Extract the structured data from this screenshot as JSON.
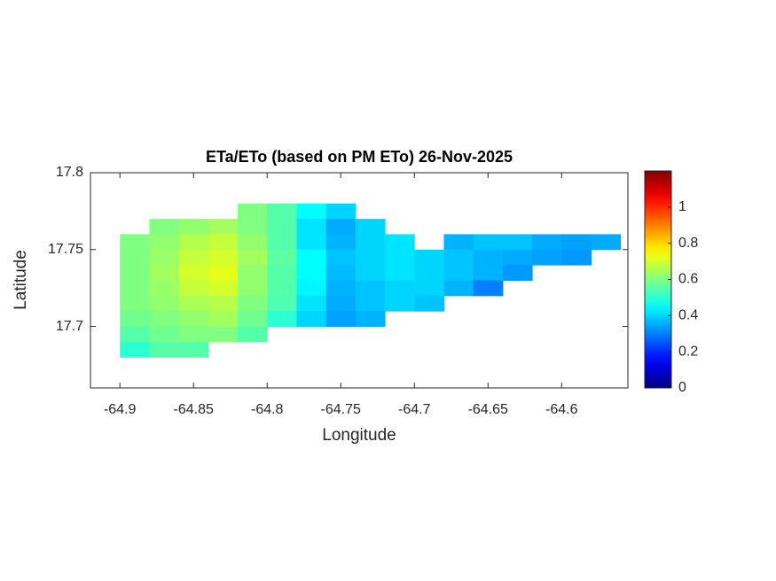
{
  "chart_data": {
    "type": "heatmap",
    "title": "ETa/ETo (based on PM ETo) 26-Nov-2025",
    "xlabel": "Longitude",
    "ylabel": "Latitude",
    "x": [
      -64.89,
      -64.87,
      -64.85,
      -64.83,
      -64.81,
      -64.79,
      -64.77,
      -64.75,
      -64.73,
      -64.71,
      -64.69,
      -64.67,
      -64.65,
      -64.63,
      -64.61,
      -64.59,
      -64.57
    ],
    "y": [
      17.775,
      17.765,
      17.755,
      17.745,
      17.735,
      17.725,
      17.715,
      17.705,
      17.695,
      17.685
    ],
    "values": [
      [
        null,
        null,
        null,
        null,
        0.6,
        0.55,
        0.45,
        0.4,
        null,
        null,
        null,
        null,
        null,
        null,
        null,
        null,
        null
      ],
      [
        null,
        0.6,
        0.62,
        0.64,
        0.6,
        0.55,
        0.42,
        0.35,
        0.4,
        null,
        null,
        null,
        null,
        null,
        null,
        null,
        null
      ],
      [
        0.6,
        0.62,
        0.66,
        0.68,
        0.62,
        0.55,
        0.42,
        0.36,
        0.4,
        0.42,
        null,
        0.36,
        0.38,
        0.38,
        0.35,
        0.34,
        0.35
      ],
      [
        0.6,
        0.63,
        0.68,
        0.7,
        0.64,
        0.56,
        0.45,
        0.38,
        0.4,
        0.42,
        0.4,
        0.38,
        0.36,
        0.35,
        0.34,
        0.33,
        null
      ],
      [
        0.6,
        0.64,
        0.7,
        0.72,
        0.62,
        0.55,
        0.45,
        0.37,
        0.4,
        0.42,
        0.4,
        0.38,
        0.36,
        0.33,
        null,
        null,
        null
      ],
      [
        0.6,
        0.63,
        0.68,
        0.7,
        0.62,
        0.55,
        0.44,
        0.36,
        0.38,
        0.4,
        0.4,
        0.36,
        0.3,
        null,
        null,
        null,
        null
      ],
      [
        0.6,
        0.62,
        0.65,
        0.66,
        0.6,
        0.54,
        0.42,
        0.35,
        0.38,
        0.4,
        0.38,
        null,
        null,
        null,
        null,
        null,
        null
      ],
      [
        0.58,
        0.6,
        0.62,
        0.64,
        0.58,
        0.5,
        0.4,
        0.34,
        0.36,
        null,
        null,
        null,
        null,
        null,
        null,
        null,
        null
      ],
      [
        0.55,
        0.58,
        0.6,
        0.6,
        0.55,
        null,
        null,
        null,
        null,
        null,
        null,
        null,
        null,
        null,
        null,
        null,
        null
      ],
      [
        0.5,
        0.55,
        0.55,
        null,
        null,
        null,
        null,
        null,
        null,
        null,
        null,
        null,
        null,
        null,
        null,
        null,
        null
      ]
    ],
    "xlim": [
      -64.92,
      -64.555
    ],
    "ylim": [
      17.66,
      17.8
    ],
    "xticks": [
      -64.9,
      -64.85,
      -64.8,
      -64.75,
      -64.7,
      -64.65,
      -64.6
    ],
    "yticks": [
      17.7,
      17.75,
      17.8
    ],
    "colormap": "jet",
    "clim": [
      0,
      1.2
    ],
    "cticks": [
      0,
      0.2,
      0.4,
      0.6,
      0.8,
      1
    ]
  }
}
